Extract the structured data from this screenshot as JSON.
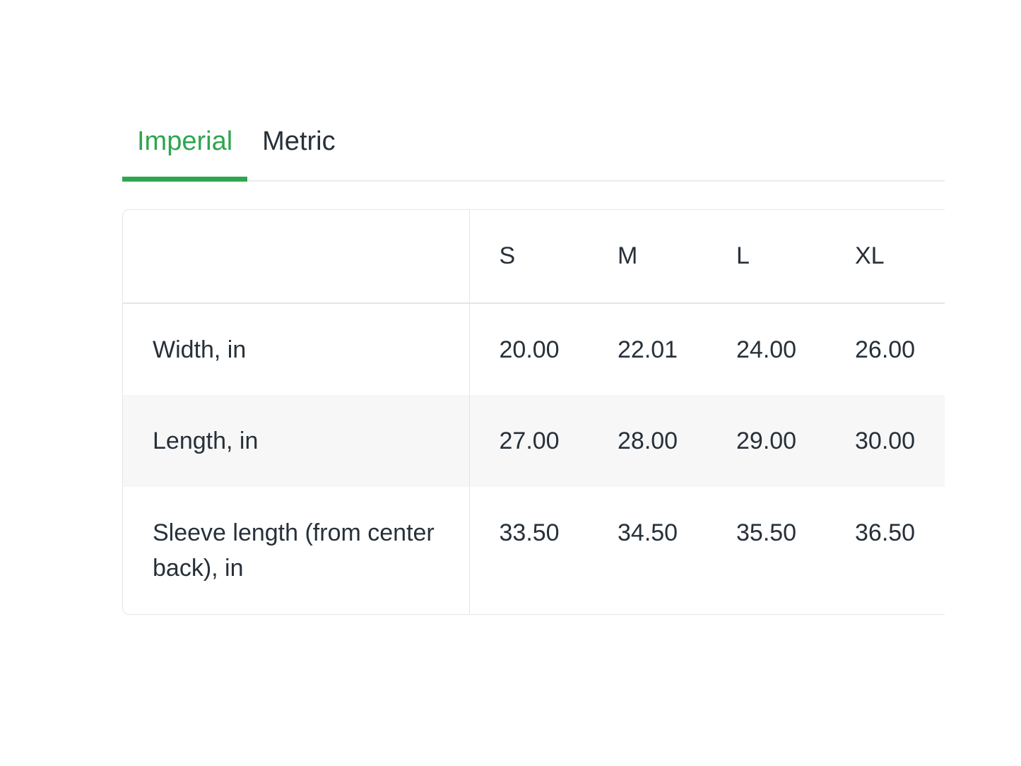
{
  "tabs": {
    "items": [
      {
        "label": "Imperial",
        "active": true
      },
      {
        "label": "Metric",
        "active": false
      }
    ]
  },
  "size_chart": {
    "columns": [
      "S",
      "M",
      "L",
      "XL"
    ],
    "rows": [
      {
        "label": "Width, in",
        "values": [
          "20.00",
          "22.01",
          "24.00",
          "26.00"
        ]
      },
      {
        "label": "Length, in",
        "values": [
          "27.00",
          "28.00",
          "29.00",
          "30.00"
        ]
      },
      {
        "label": "Sleeve length (from center back), in",
        "values": [
          "33.50",
          "34.50",
          "35.50",
          "36.50"
        ]
      }
    ]
  },
  "colors": {
    "accent_green": "#2ea64f",
    "text": "#273039",
    "border": "#e3e5e8",
    "tabbar_border": "#e9eaeb",
    "alt_row_bg": "#f7f7f8"
  }
}
